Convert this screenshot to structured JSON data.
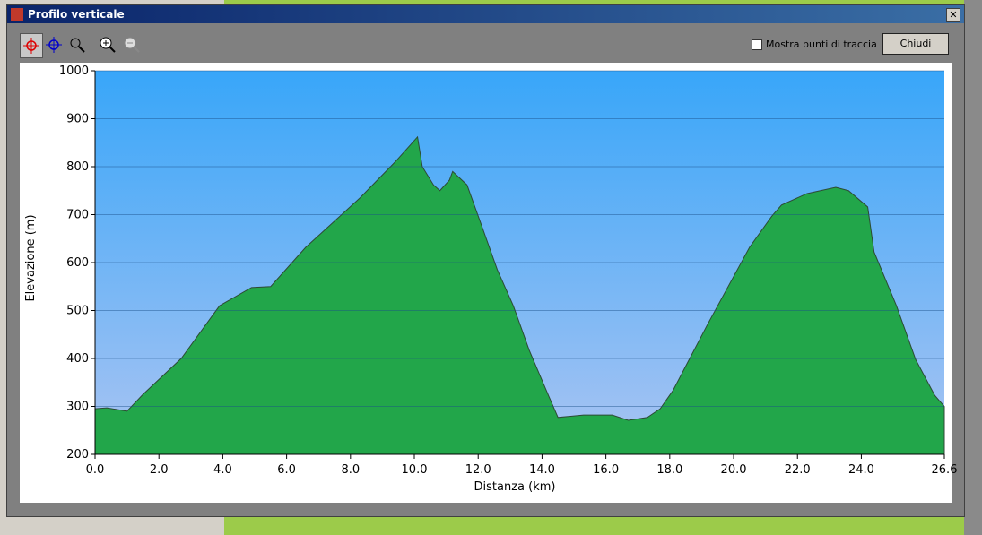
{
  "window": {
    "title": "Profilo verticale",
    "checkbox_label": "Mostra punti di traccia",
    "button": "Chiudi"
  },
  "chart_data": {
    "type": "area",
    "x_label": "Distanza   (km)",
    "y_label": "Elevazione (m)",
    "color": "#1f9e45",
    "x": [
      0,
      0.37,
      1.0,
      1.5,
      2.7,
      3.9,
      4.9,
      5.5,
      6.6,
      8.3,
      9.4,
      10.1,
      10.25,
      10.6,
      10.8,
      11.1,
      11.2,
      11.65,
      12.2,
      12.6,
      13.1,
      13.6,
      14.2,
      14.5,
      15.3,
      16.2,
      16.7,
      17.3,
      17.7,
      18.1,
      19.2,
      20.5,
      21.2,
      21.5,
      22.3,
      23.2,
      23.6,
      24.2,
      24.4,
      25.1,
      25.7,
      26.3,
      26.6
    ],
    "values": [
      295,
      297,
      290,
      325,
      400,
      510,
      548,
      550,
      632,
      735,
      810,
      862,
      800,
      762,
      750,
      772,
      790,
      762,
      660,
      585,
      510,
      417,
      323,
      277,
      282,
      282,
      271,
      277,
      295,
      333,
      473,
      632,
      697,
      720,
      744,
      757,
      750,
      716,
      622,
      510,
      398,
      323,
      300
    ],
    "xlim": [
      0,
      26.6
    ],
    "ylim": [
      200,
      1000
    ],
    "xticks": [
      {
        "value": 0,
        "label": "0.0"
      },
      {
        "value": 2,
        "label": "2.0"
      },
      {
        "value": 4,
        "label": "4.0"
      },
      {
        "value": 6,
        "label": "6.0"
      },
      {
        "value": 8,
        "label": "8.0"
      },
      {
        "value": 10,
        "label": "10.0"
      },
      {
        "value": 12,
        "label": "12.0"
      },
      {
        "value": 14,
        "label": "14.0"
      },
      {
        "value": 16,
        "label": "16.0"
      },
      {
        "value": 18,
        "label": "18.0"
      },
      {
        "value": 20,
        "label": "20.0"
      },
      {
        "value": 22,
        "label": "22.0"
      },
      {
        "value": 24,
        "label": "24.0"
      },
      26.6
    ],
    "yticks": [
      200,
      300,
      400,
      500,
      600,
      700,
      800,
      900,
      1000
    ],
    "grid": true
  }
}
